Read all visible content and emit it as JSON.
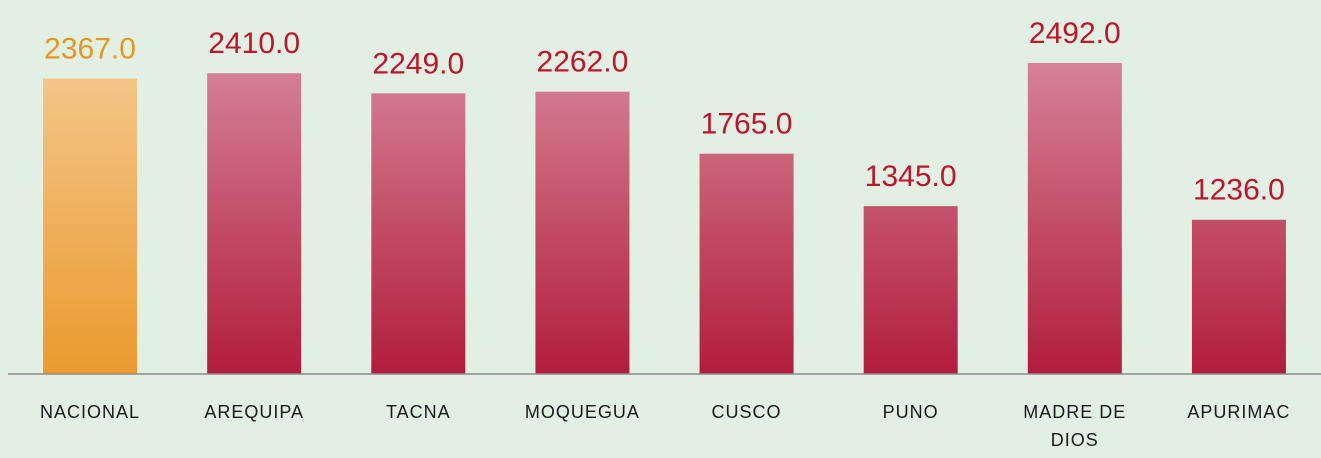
{
  "chart_data": {
    "type": "bar",
    "categories": [
      "NACIONAL",
      "AREQUIPA",
      "TACNA",
      "MOQUEGUA",
      "CUSCO",
      "PUNO",
      "MADRE DE DIOS",
      "APURIMAC"
    ],
    "values": [
      2367,
      2410,
      2249,
      2262,
      1765,
      1345,
      2492,
      1236
    ],
    "value_labels": [
      "2367.0",
      "2410.0",
      "2249.0",
      "2262.0",
      "1765.0",
      "1345.0",
      "2492.0",
      "1236.0"
    ],
    "colors": [
      "#eb9a2e",
      "#b21c3e",
      "#b21c3e",
      "#b21c3e",
      "#b21c3e",
      "#b21c3e",
      "#b21c3e",
      "#b21c3e"
    ]
  }
}
